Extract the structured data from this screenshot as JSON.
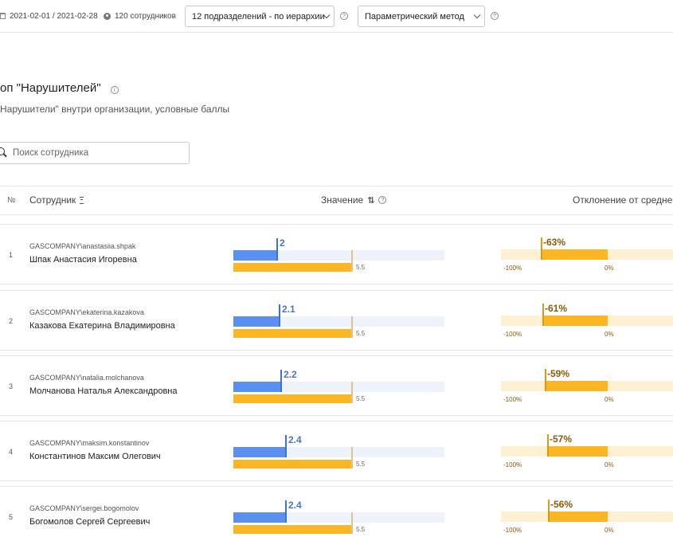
{
  "toolbar": {
    "period": "2021-02-01 / 2021-02-28",
    "employees": "120 сотрудников",
    "department_select": "12 подразделений - по иерархии",
    "method_select": "Параметрический метод",
    "help_glyph": "?"
  },
  "page": {
    "title": "оп \"Нарушителей\"",
    "subtitle": "Нарушители\" внутри организации, условные баллы",
    "info_glyph": "i"
  },
  "search": {
    "placeholder": "Поиск сотрудника",
    "value": ""
  },
  "table": {
    "columns": {
      "num": "№",
      "employee": "Сотрудник",
      "value": "Значение",
      "deviation": "Отклонение от средне"
    },
    "scale": {
      "min_label": "-100%",
      "zero_label": "0%",
      "value_max": 9.8
    },
    "rows": [
      {
        "num": "1",
        "login": "GASCOMPANY\\anastasiia.shpak",
        "name": "Шпак Анастасия Игоревна",
        "value": 2,
        "value_label": "2",
        "avg": 5.5,
        "avg_label": "5.5",
        "deviation": -63,
        "deviation_label": "-63%"
      },
      {
        "num": "2",
        "login": "GASCOMPANY\\ekaterina.kazakova",
        "name": "Казакова Екатерина Владимировна",
        "value": 2.1,
        "value_label": "2.1",
        "avg": 5.5,
        "avg_label": "5.5",
        "deviation": -61,
        "deviation_label": "-61%"
      },
      {
        "num": "3",
        "login": "GASCOMPANY\\natalia.molchanova",
        "name": "Молчанова Наталья Александровна",
        "value": 2.2,
        "value_label": "2.2",
        "avg": 5.5,
        "avg_label": "5.5",
        "deviation": -59,
        "deviation_label": "-59%"
      },
      {
        "num": "4",
        "login": "GASCOMPANY\\maksim.konstantinov",
        "name": "Константинов Максим Олегович",
        "value": 2.4,
        "value_label": "2.4",
        "avg": 5.5,
        "avg_label": "5.5",
        "deviation": -57,
        "deviation_label": "-57%"
      },
      {
        "num": "5",
        "login": "GASCOMPANY\\sergei.bogomolov",
        "name": "Богомолов Сергей Сергеевич",
        "value": 2.4,
        "value_label": "2.4",
        "avg": 5.5,
        "avg_label": "5.5",
        "deviation": -56,
        "deviation_label": "-56%"
      }
    ]
  }
}
